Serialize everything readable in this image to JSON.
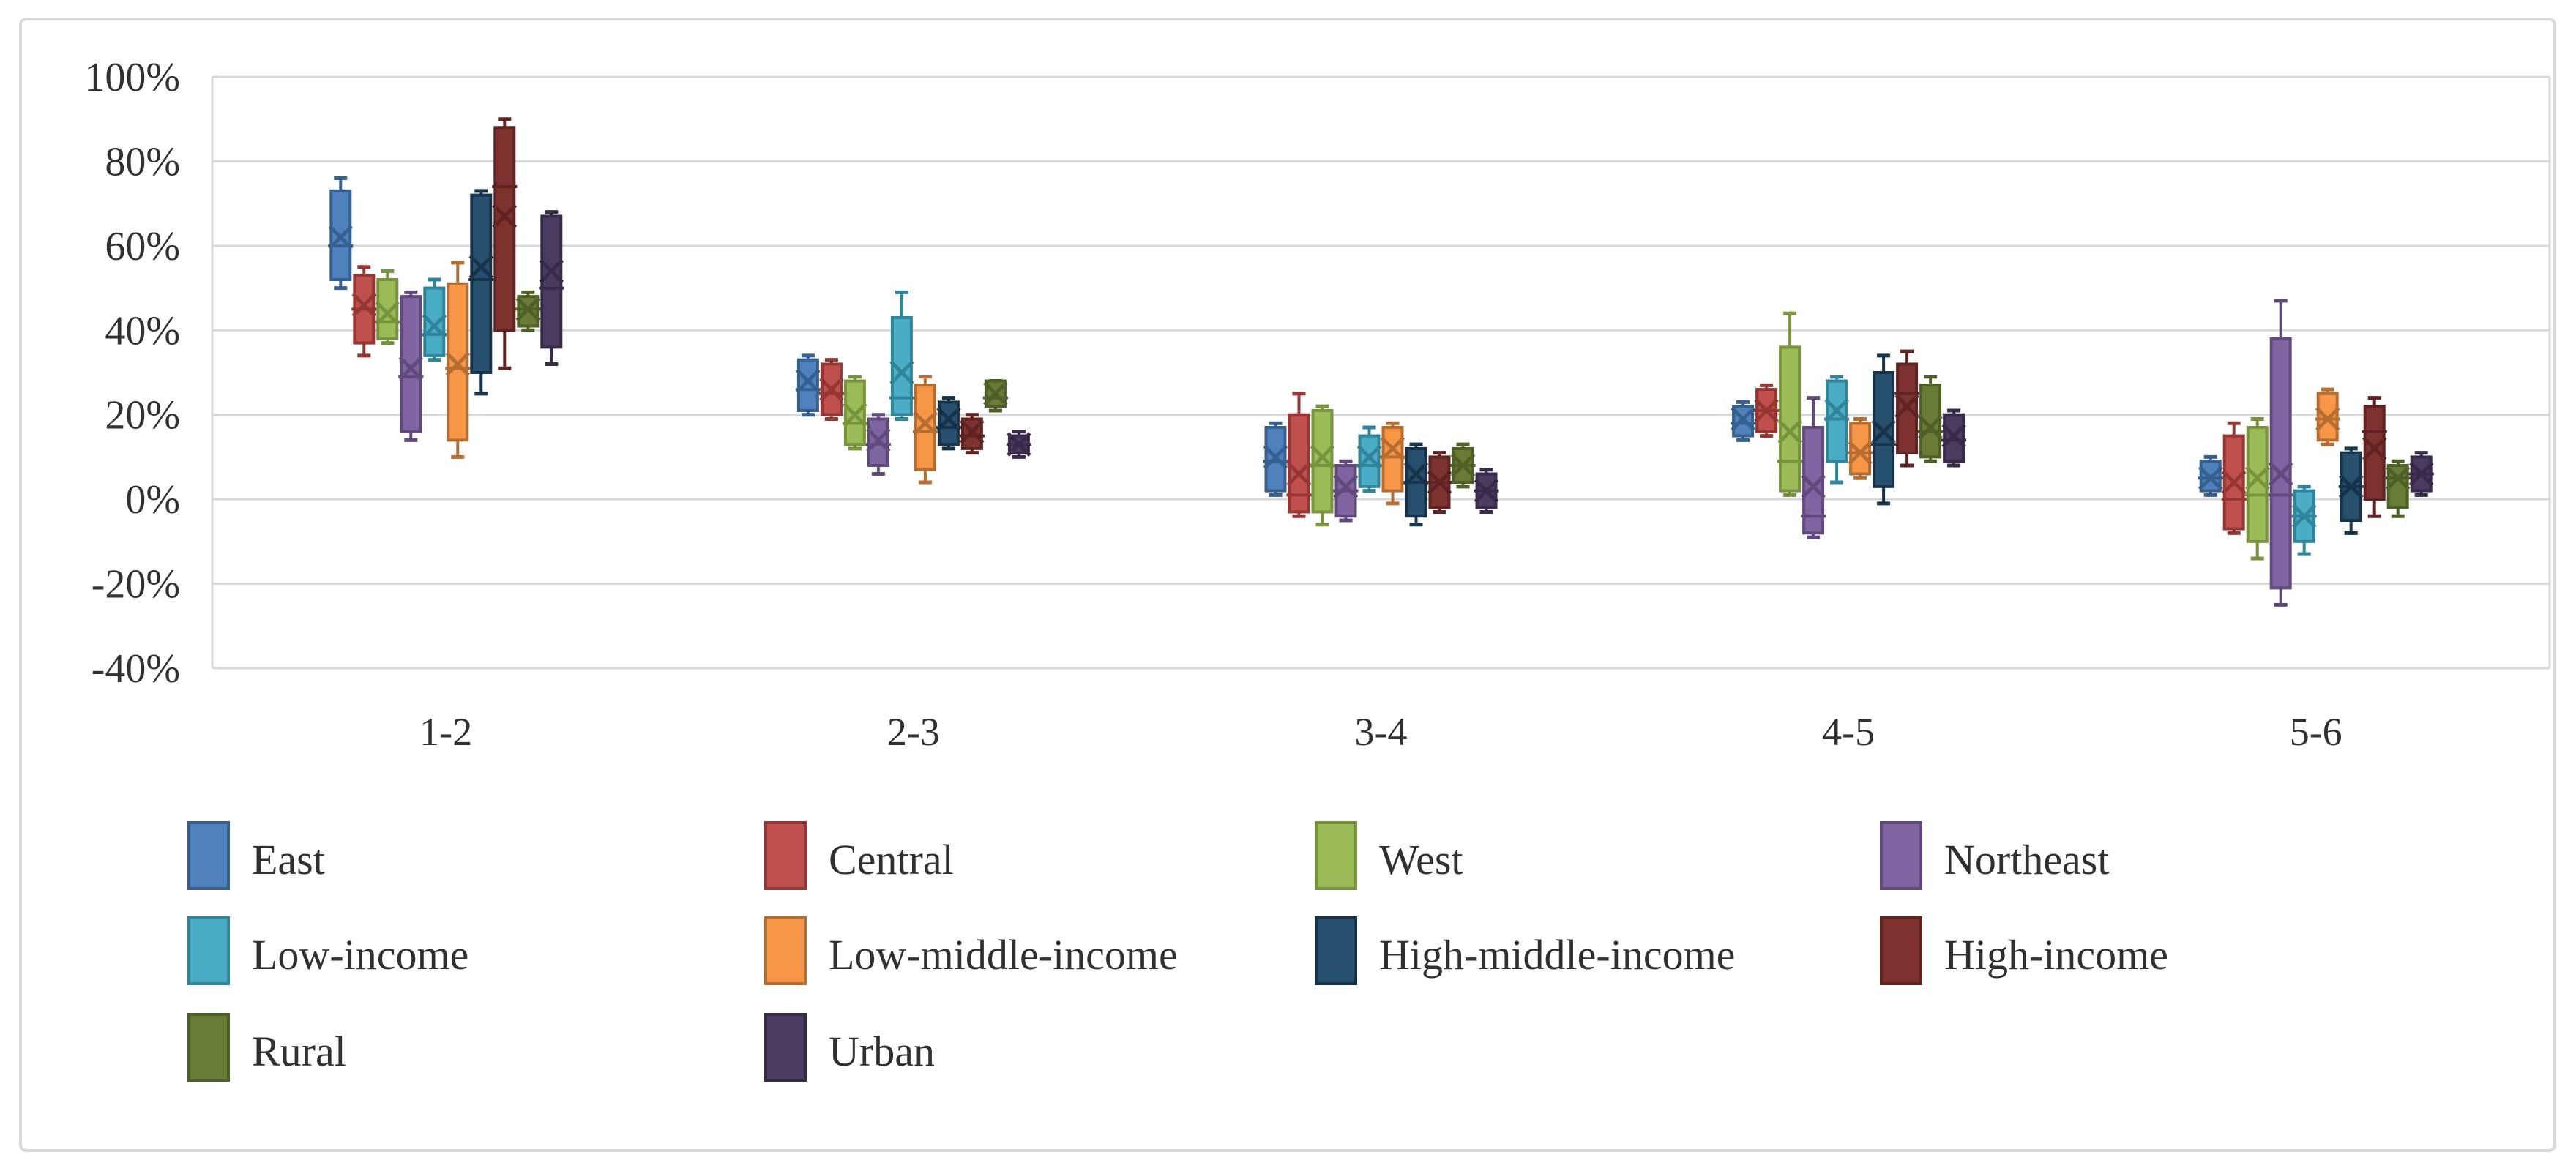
{
  "chart_data": {
    "type": "box-whisker",
    "title": "",
    "categories": [
      "1-2",
      "2-3",
      "3-4",
      "4-5",
      "5-6"
    ],
    "y_axis": {
      "min": -40,
      "max": 100,
      "step": 20,
      "unit": "%",
      "tick_values": [
        100,
        80,
        60,
        40,
        20,
        0,
        -20,
        -40
      ],
      "tick_labels": [
        "100%",
        "80%",
        "60%",
        "40%",
        "20%",
        "0%",
        "-20%",
        "-40%"
      ]
    },
    "grid": true,
    "legend_position": "bottom",
    "box_values_order": [
      "whisker_low",
      "q1",
      "median",
      "mean",
      "q3",
      "whisker_high"
    ],
    "series": [
      {
        "name": "East",
        "fill": "#4F81BD",
        "border": "#36608F",
        "values": [
          [
            50,
            52,
            60,
            62,
            73,
            76
          ],
          [
            20,
            21,
            26,
            28,
            33,
            34
          ],
          [
            1,
            2,
            9,
            10,
            17,
            18
          ],
          [
            14,
            15,
            18,
            19,
            22,
            23
          ],
          [
            1,
            2,
            5,
            5,
            9,
            10
          ]
        ]
      },
      {
        "name": "Central",
        "fill": "#C0504D",
        "border": "#943634",
        "values": [
          [
            34,
            37,
            45,
            46,
            53,
            55
          ],
          [
            19,
            20,
            25,
            26,
            32,
            33
          ],
          [
            -4,
            -3,
            1,
            6,
            20,
            25
          ],
          [
            15,
            16,
            21,
            21,
            26,
            27
          ],
          [
            -8,
            -7,
            0,
            4,
            15,
            18
          ]
        ]
      },
      {
        "name": "West",
        "fill": "#9BBB59",
        "border": "#77933C",
        "values": [
          [
            37,
            38,
            42,
            44,
            52,
            54
          ],
          [
            12,
            13,
            18,
            20,
            28,
            29
          ],
          [
            -6,
            -3,
            8,
            10,
            21,
            22
          ],
          [
            1,
            2,
            9,
            16,
            36,
            44
          ],
          [
            -14,
            -10,
            1,
            5,
            17,
            19
          ]
        ]
      },
      {
        "name": "Northeast",
        "fill": "#8064A2",
        "border": "#604A7B",
        "values": [
          [
            14,
            16,
            29,
            31,
            48,
            49
          ],
          [
            6,
            8,
            13,
            14,
            19,
            20
          ],
          [
            -5,
            -4,
            2,
            3,
            8,
            9
          ],
          [
            -9,
            -8,
            -4,
            3,
            17,
            24
          ],
          [
            -25,
            -21,
            1,
            6,
            38,
            47
          ]
        ]
      },
      {
        "name": "Low-income",
        "fill": "#4BACC6",
        "border": "#31859B",
        "values": [
          [
            33,
            34,
            39,
            41,
            50,
            52
          ],
          [
            19,
            20,
            24,
            30,
            43,
            49
          ],
          [
            2,
            3,
            8,
            10,
            15,
            17
          ],
          [
            4,
            9,
            19,
            21,
            28,
            29
          ],
          [
            -13,
            -10,
            -4,
            -4,
            2,
            3
          ]
        ]
      },
      {
        "name": "Low-middle-income",
        "fill": "#F79646",
        "border": "#B66D31",
        "values": [
          [
            10,
            14,
            31,
            32,
            51,
            56
          ],
          [
            4,
            7,
            16,
            18,
            27,
            29
          ],
          [
            -1,
            2,
            10,
            12,
            17,
            18
          ],
          [
            5,
            6,
            11,
            11,
            18,
            19
          ],
          [
            13,
            14,
            19,
            19,
            25,
            26
          ]
        ]
      },
      {
        "name": "High-middle-income",
        "fill": "#27506E",
        "border": "#17334A",
        "values": [
          [
            25,
            30,
            52,
            55,
            72,
            73
          ],
          [
            12,
            13,
            17,
            19,
            23,
            24
          ],
          [
            -6,
            -4,
            4,
            6,
            12,
            13
          ],
          [
            -1,
            3,
            13,
            16,
            30,
            34
          ],
          [
            -8,
            -5,
            3,
            3,
            11,
            12
          ]
        ]
      },
      {
        "name": "High-income",
        "fill": "#7E3230",
        "border": "#5F2422",
        "values": [
          [
            31,
            40,
            74,
            67,
            88,
            90
          ],
          [
            11,
            12,
            15,
            16,
            19,
            20
          ],
          [
            -3,
            -2,
            4,
            4,
            10,
            11
          ],
          [
            8,
            11,
            25,
            22,
            32,
            35
          ],
          [
            -4,
            0,
            16,
            12,
            22,
            24
          ]
        ]
      },
      {
        "name": "Rural",
        "fill": "#697C35",
        "border": "#4E5F27",
        "values": [
          [
            40,
            41,
            45,
            45,
            48,
            49
          ],
          [
            21,
            22,
            24,
            25,
            28,
            28
          ],
          [
            3,
            4,
            8,
            8,
            12,
            13
          ],
          [
            9,
            10,
            16,
            17,
            27,
            29
          ],
          [
            -4,
            -2,
            5,
            5,
            8,
            9
          ]
        ]
      },
      {
        "name": "Urban",
        "fill": "#4C3B61",
        "border": "#382B49",
        "values": [
          [
            32,
            36,
            50,
            54,
            67,
            68
          ],
          [
            10,
            11,
            13,
            13,
            15,
            16
          ],
          [
            -3,
            -2,
            2,
            2,
            6,
            7
          ],
          [
            8,
            9,
            14,
            15,
            20,
            21
          ],
          [
            1,
            2,
            6,
            6,
            10,
            11
          ]
        ]
      }
    ],
    "legend_rows": [
      [
        "East",
        "Central",
        "West",
        "Northeast"
      ],
      [
        "Low-income",
        "Low-middle-income",
        "High-middle-income",
        "High-income"
      ],
      [
        "Rural",
        "Urban"
      ]
    ],
    "colors": {
      "gridline": "#D9D9D9",
      "chart_border": "#D9D9D9",
      "axis_text": "#303030",
      "background": "#FFFFFF"
    }
  }
}
